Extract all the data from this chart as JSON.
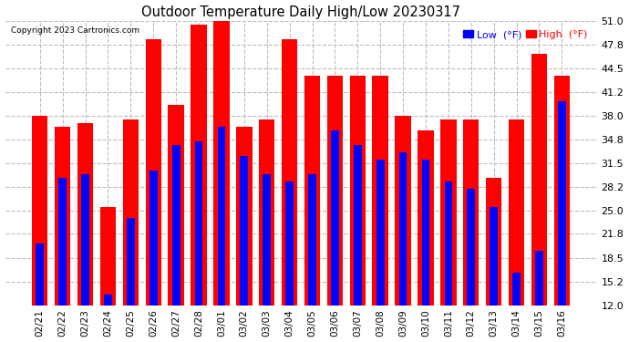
{
  "title": "Outdoor Temperature Daily High/Low 20230317",
  "copyright": "Copyright 2023 Cartronics.com",
  "legend_low": "Low  (°F)",
  "legend_high": "High  (°F)",
  "low_color": "#0000ff",
  "high_color": "#ff0000",
  "dates": [
    "02/21",
    "02/22",
    "02/23",
    "02/24",
    "02/25",
    "02/26",
    "02/27",
    "02/28",
    "03/01",
    "03/02",
    "03/03",
    "03/04",
    "03/05",
    "03/06",
    "03/07",
    "03/08",
    "03/09",
    "03/10",
    "03/11",
    "03/12",
    "03/13",
    "03/14",
    "03/15",
    "03/16"
  ],
  "highs": [
    38.0,
    36.5,
    37.0,
    25.5,
    37.5,
    48.5,
    39.5,
    50.5,
    51.0,
    36.5,
    37.5,
    48.5,
    43.5,
    43.5,
    43.5,
    43.5,
    38.0,
    36.0,
    37.5,
    37.5,
    29.5,
    37.5,
    46.5,
    43.5
  ],
  "lows": [
    20.5,
    29.5,
    30.0,
    13.5,
    24.0,
    30.5,
    34.0,
    34.5,
    36.5,
    32.5,
    30.0,
    29.0,
    30.0,
    36.0,
    34.0,
    32.0,
    33.0,
    32.0,
    29.0,
    28.0,
    25.5,
    16.5,
    19.5,
    40.0
  ],
  "ylim_min": 12.0,
  "ylim_max": 51.0,
  "yticks": [
    12.0,
    15.2,
    18.5,
    21.8,
    25.0,
    28.2,
    31.5,
    34.8,
    38.0,
    41.2,
    44.5,
    47.8,
    51.0
  ],
  "background_color": "#ffffff",
  "grid_color": "#bbbbbb",
  "bar_width": 0.7,
  "low_bar_width": 0.35
}
